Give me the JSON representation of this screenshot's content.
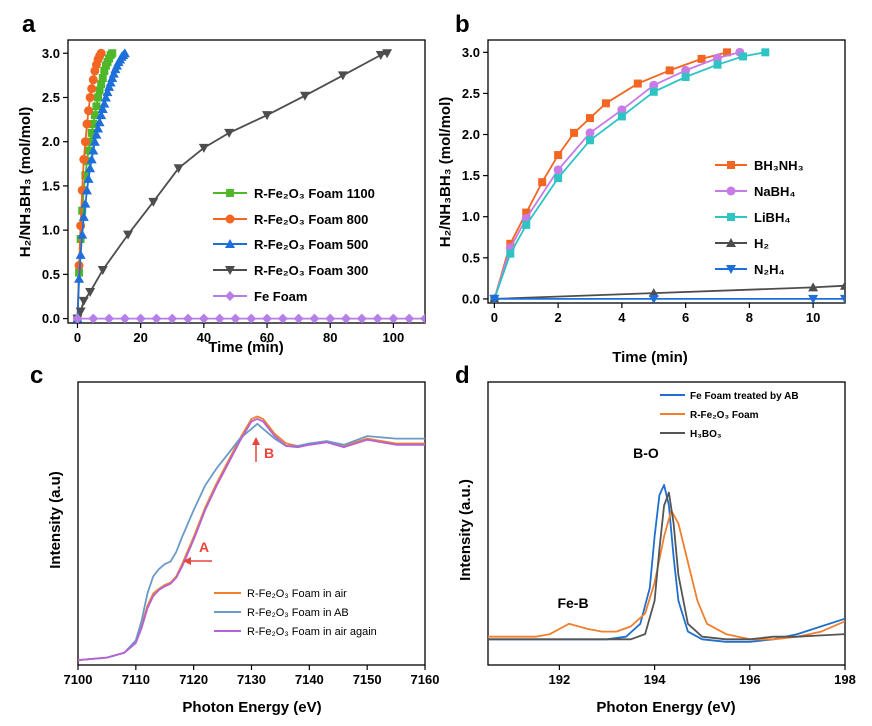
{
  "chart_data": [
    {
      "panel": "a",
      "type": "line",
      "xlabel": "Time (min)",
      "ylabel": "H₂/NH₃BH₃ (mol/mol)",
      "xlim": [
        -3,
        110
      ],
      "ylim": [
        -0.05,
        3.15
      ],
      "xticks": [
        0,
        20,
        40,
        60,
        80,
        100
      ],
      "yticks": [
        0.0,
        0.5,
        1.0,
        1.5,
        2.0,
        2.5,
        3.0
      ],
      "legend_position": "center-right",
      "series": [
        {
          "name": "R-Fe₂O₃ Foam 1100",
          "color": "#4fb82a",
          "marker": "square",
          "x": [
            0,
            0.5,
            1,
            1.5,
            2,
            2.5,
            3,
            3.5,
            4,
            4.5,
            5,
            5.5,
            6,
            6.5,
            7,
            7.5,
            8,
            8.5,
            9,
            9.5,
            10,
            10.5,
            11
          ],
          "y": [
            0,
            0.52,
            0.9,
            1.22,
            1.45,
            1.62,
            1.78,
            1.9,
            2.0,
            2.1,
            2.2,
            2.3,
            2.4,
            2.5,
            2.58,
            2.65,
            2.72,
            2.8,
            2.86,
            2.9,
            2.94,
            2.98,
            3.0
          ]
        },
        {
          "name": "R-Fe₂O₃ Foam 800",
          "color": "#f26522",
          "marker": "circle",
          "x": [
            0,
            0.5,
            1,
            1.5,
            2,
            2.5,
            3,
            3.5,
            4,
            4.5,
            5,
            5.5,
            6,
            6.5,
            7,
            7.5
          ],
          "y": [
            0,
            0.6,
            1.05,
            1.45,
            1.8,
            2.0,
            2.2,
            2.35,
            2.5,
            2.6,
            2.7,
            2.8,
            2.87,
            2.93,
            2.97,
            3.0
          ]
        },
        {
          "name": "R-Fe₂O₃ Foam 500",
          "color": "#1e6fd9",
          "marker": "triangle-up",
          "x": [
            0,
            0.5,
            1,
            1.5,
            2,
            2.5,
            3,
            3.5,
            4,
            4.5,
            5,
            5.5,
            6,
            6.5,
            7,
            7.5,
            8,
            8.5,
            9,
            9.5,
            10,
            10.5,
            11,
            11.5,
            12,
            12.5,
            13,
            13.5,
            14,
            14.5,
            15
          ],
          "y": [
            0,
            0.45,
            0.72,
            0.95,
            1.15,
            1.3,
            1.45,
            1.58,
            1.7,
            1.8,
            1.9,
            2.0,
            2.08,
            2.15,
            2.22,
            2.3,
            2.37,
            2.43,
            2.5,
            2.56,
            2.62,
            2.67,
            2.72,
            2.77,
            2.82,
            2.86,
            2.9,
            2.93,
            2.96,
            2.98,
            3.0
          ]
        },
        {
          "name": "R-Fe₂O₃ Foam 300",
          "color": "#4d4d4d",
          "marker": "triangle-down",
          "x": [
            0,
            1,
            2,
            4,
            8,
            16,
            24,
            32,
            40,
            48,
            60,
            72,
            84,
            96,
            98
          ],
          "y": [
            0,
            0.08,
            0.2,
            0.3,
            0.55,
            0.95,
            1.32,
            1.7,
            1.93,
            2.1,
            2.3,
            2.52,
            2.75,
            2.98,
            3.0
          ]
        },
        {
          "name": "Fe Foam",
          "color": "#b57ee8",
          "marker": "diamond",
          "x": [
            0,
            5,
            10,
            15,
            20,
            25,
            30,
            35,
            40,
            45,
            50,
            55,
            60,
            65,
            70,
            75,
            80,
            85,
            90,
            95,
            100,
            105,
            110
          ],
          "y": [
            0,
            0,
            0,
            0,
            0,
            0,
            0,
            0,
            0,
            0,
            0,
            0,
            0,
            0,
            0,
            0,
            0,
            0,
            0,
            0,
            0,
            0,
            0
          ]
        }
      ]
    },
    {
      "panel": "b",
      "type": "line",
      "xlabel": "Time (min)",
      "ylabel": "H₂/NH₃BH₃ (mol/mol)",
      "xlim": [
        -0.2,
        11
      ],
      "ylim": [
        -0.05,
        3.15
      ],
      "xticks": [
        0,
        2,
        4,
        6,
        8,
        10
      ],
      "yticks": [
        0.0,
        0.5,
        1.0,
        1.5,
        2.0,
        2.5,
        3.0
      ],
      "legend_position": "right",
      "series": [
        {
          "name": "BH₃NH₃",
          "color": "#f26522",
          "marker": "square",
          "x": [
            0,
            0.5,
            1,
            1.5,
            2,
            2.5,
            3,
            3.5,
            4.5,
            5.5,
            6.5,
            7.3
          ],
          "y": [
            0,
            0.67,
            1.05,
            1.42,
            1.75,
            2.02,
            2.2,
            2.38,
            2.62,
            2.78,
            2.92,
            3.0
          ]
        },
        {
          "name": "NaBH₄",
          "color": "#c77be6",
          "marker": "circle",
          "x": [
            0,
            0.5,
            1,
            2,
            3,
            4,
            5,
            6,
            7,
            7.7
          ],
          "y": [
            0,
            0.62,
            0.98,
            1.57,
            2.02,
            2.3,
            2.6,
            2.78,
            2.93,
            3.0
          ]
        },
        {
          "name": "LiBH₄",
          "color": "#2ec4c4",
          "marker": "square",
          "x": [
            0,
            0.5,
            1,
            2,
            3,
            4,
            5,
            6,
            7,
            7.8,
            8.5
          ],
          "y": [
            0,
            0.55,
            0.9,
            1.47,
            1.93,
            2.22,
            2.52,
            2.7,
            2.85,
            2.95,
            3.0
          ]
        },
        {
          "name": "H₂",
          "color": "#4d4d4d",
          "marker": "triangle-up",
          "x": [
            0,
            5,
            10,
            11
          ],
          "y": [
            0,
            0.07,
            0.14,
            0.16
          ]
        },
        {
          "name": "N₂H₄",
          "color": "#1e6fd9",
          "marker": "triangle-down",
          "x": [
            0,
            5,
            10,
            11
          ],
          "y": [
            0,
            0,
            0,
            0
          ]
        }
      ]
    },
    {
      "panel": "c",
      "type": "line",
      "xlabel": "Photon Energy (eV)",
      "ylabel": "Intensity (a.u)",
      "xlim": [
        7100,
        7160
      ],
      "ylim": [
        0,
        1.15
      ],
      "xticks": [
        7100,
        7110,
        7120,
        7130,
        7140,
        7150,
        7160
      ],
      "legend_position": "bottom-right",
      "annotations": [
        {
          "text": "A",
          "x": 7116,
          "y": 0.33
        },
        {
          "text": "B",
          "x": 7131,
          "y": 0.97
        }
      ],
      "series": [
        {
          "name": "R-Fe₂O₃ Foam in air",
          "color": "#f07f2e",
          "x": [
            7100,
            7105,
            7108,
            7110,
            7111,
            7112,
            7113,
            7114,
            7115,
            7116,
            7117,
            7118,
            7120,
            7122,
            7124,
            7126,
            7128,
            7130,
            7131,
            7132,
            7134,
            7136,
            7138,
            7140,
            7143,
            7146,
            7150,
            7155,
            7160
          ],
          "y": [
            0.02,
            0.03,
            0.05,
            0.09,
            0.16,
            0.24,
            0.29,
            0.31,
            0.325,
            0.335,
            0.36,
            0.41,
            0.52,
            0.64,
            0.74,
            0.83,
            0.92,
            1.0,
            1.01,
            1.0,
            0.94,
            0.9,
            0.89,
            0.9,
            0.91,
            0.89,
            0.92,
            0.9,
            0.9
          ]
        },
        {
          "name": "R-Fe₂O₃ Foam in AB",
          "color": "#6a9bc8",
          "x": [
            7100,
            7105,
            7108,
            7110,
            7111,
            7112,
            7113,
            7114,
            7115,
            7116,
            7117,
            7118,
            7120,
            7122,
            7124,
            7126,
            7128,
            7130,
            7131,
            7132,
            7134,
            7136,
            7138,
            7140,
            7143,
            7146,
            7150,
            7155,
            7160
          ],
          "y": [
            0.02,
            0.03,
            0.05,
            0.1,
            0.18,
            0.29,
            0.36,
            0.39,
            0.41,
            0.42,
            0.46,
            0.52,
            0.63,
            0.73,
            0.8,
            0.86,
            0.92,
            0.96,
            0.98,
            0.96,
            0.92,
            0.89,
            0.89,
            0.9,
            0.91,
            0.895,
            0.93,
            0.92,
            0.92
          ]
        },
        {
          "name": "R-Fe₂O₃ Foam in air again",
          "color": "#b562d6",
          "x": [
            7100,
            7105,
            7108,
            7110,
            7111,
            7112,
            7113,
            7114,
            7115,
            7116,
            7117,
            7118,
            7120,
            7122,
            7124,
            7126,
            7128,
            7130,
            7131,
            7132,
            7134,
            7136,
            7138,
            7140,
            7143,
            7146,
            7150,
            7155,
            7160
          ],
          "y": [
            0.02,
            0.03,
            0.05,
            0.09,
            0.15,
            0.23,
            0.28,
            0.305,
            0.32,
            0.33,
            0.355,
            0.4,
            0.51,
            0.63,
            0.73,
            0.82,
            0.91,
            0.99,
            1.0,
            0.99,
            0.93,
            0.89,
            0.885,
            0.895,
            0.905,
            0.885,
            0.915,
            0.895,
            0.895
          ]
        }
      ]
    },
    {
      "panel": "d",
      "type": "line",
      "xlabel": "Photon Energy (eV)",
      "ylabel": "Intensity (a.u.)",
      "xlim": [
        190.5,
        198
      ],
      "ylim": [
        0,
        1.1
      ],
      "xticks": [
        192,
        194,
        196,
        198
      ],
      "legend_position": "top-right",
      "annotations": [
        {
          "text": "B-O",
          "x": 193.7,
          "y": 0.66
        },
        {
          "text": "Fe-B",
          "x": 192.3,
          "y": 0.19
        }
      ],
      "series": [
        {
          "name": "Fe Foam treated by AB",
          "color": "#1f6fcf",
          "x": [
            190.5,
            191,
            191.5,
            192,
            192.5,
            193,
            193.4,
            193.7,
            193.9,
            194.0,
            194.1,
            194.2,
            194.3,
            194.4,
            194.5,
            194.7,
            195,
            195.5,
            196,
            196.5,
            197,
            197.5,
            198
          ],
          "y": [
            0.1,
            0.1,
            0.1,
            0.1,
            0.1,
            0.1,
            0.11,
            0.16,
            0.3,
            0.5,
            0.66,
            0.7,
            0.62,
            0.42,
            0.25,
            0.13,
            0.1,
            0.09,
            0.09,
            0.1,
            0.12,
            0.15,
            0.18
          ]
        },
        {
          "name": "R-Fe₂O₃ Foam",
          "color": "#f07f2e",
          "x": [
            190.5,
            191,
            191.5,
            191.8,
            192,
            192.2,
            192.4,
            192.6,
            192.9,
            193.2,
            193.5,
            193.8,
            194.0,
            194.2,
            194.35,
            194.5,
            194.7,
            194.9,
            195.1,
            195.5,
            196,
            196.5,
            197,
            197.5,
            198
          ],
          "y": [
            0.11,
            0.11,
            0.11,
            0.12,
            0.14,
            0.16,
            0.15,
            0.14,
            0.13,
            0.13,
            0.15,
            0.2,
            0.32,
            0.5,
            0.6,
            0.55,
            0.4,
            0.25,
            0.16,
            0.12,
            0.1,
            0.1,
            0.11,
            0.13,
            0.17
          ]
        },
        {
          "name": "H₃BO₃",
          "color": "#555555",
          "x": [
            190.5,
            191,
            191.5,
            192,
            192.5,
            193,
            193.5,
            193.8,
            194.0,
            194.1,
            194.2,
            194.3,
            194.4,
            194.5,
            194.7,
            195,
            195.5,
            196,
            196.5,
            197,
            197.5,
            198
          ],
          "y": [
            0.1,
            0.1,
            0.1,
            0.1,
            0.1,
            0.1,
            0.1,
            0.12,
            0.25,
            0.45,
            0.62,
            0.67,
            0.55,
            0.35,
            0.16,
            0.11,
            0.1,
            0.1,
            0.11,
            0.11,
            0.115,
            0.12
          ]
        }
      ]
    }
  ],
  "panels": {
    "a": {
      "label": "a",
      "legend": [
        "R-Fe₂O₃ Foam 1100",
        "R-Fe₂O₃ Foam 800",
        "R-Fe₂O₃ Foam 500",
        "R-Fe₂O₃ Foam 300",
        "Fe Foam"
      ]
    },
    "b": {
      "label": "b",
      "legend": [
        "BH₃NH₃",
        "NaBH₄",
        "LiBH₄",
        "H₂",
        "N₂H₄"
      ]
    },
    "c": {
      "label": "c",
      "legend": [
        "R-Fe₂O₃ Foam in air",
        "R-Fe₂O₃ Foam in AB",
        "R-Fe₂O₃ Foam in air again"
      ]
    },
    "d": {
      "label": "d",
      "legend": [
        "Fe Foam treated by AB",
        "R-Fe₂O₃ Foam",
        "H₃BO₃"
      ]
    }
  },
  "annotations": {
    "a_arrow": "A",
    "b_arrow": "B",
    "bo_peak": "B-O",
    "feb_peak": "Fe-B"
  }
}
